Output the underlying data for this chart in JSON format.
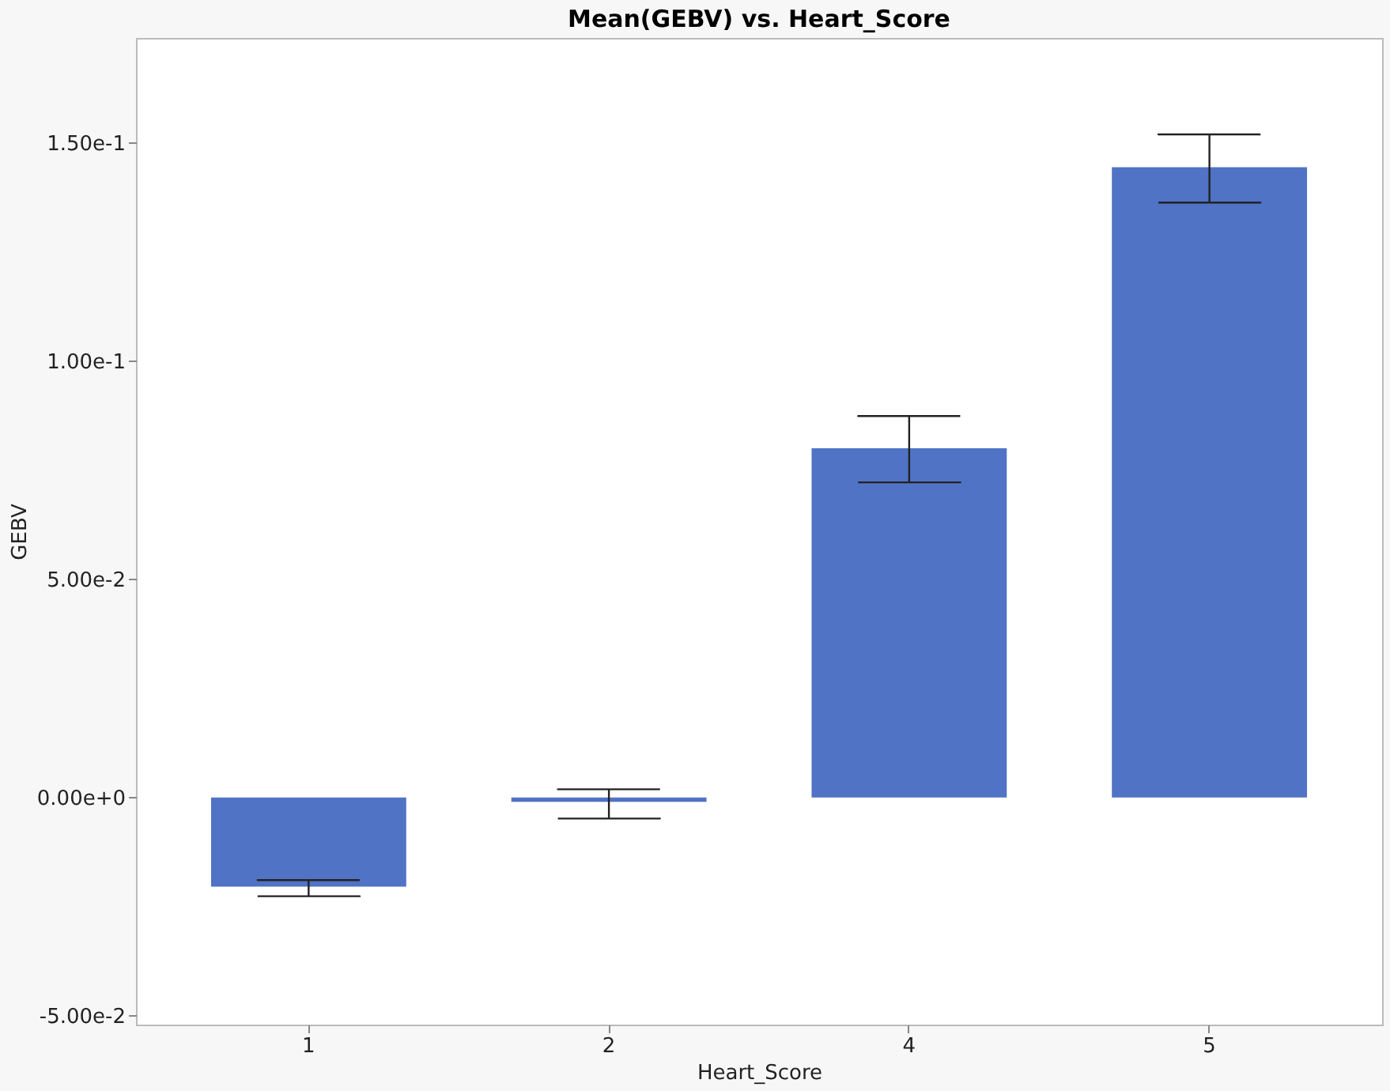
{
  "chart_data": {
    "type": "bar",
    "title": "Mean(GEBV) vs. Heart_Score",
    "xlabel": "Heart_Score",
    "ylabel": "GEBV",
    "categories": [
      "1",
      "2",
      "4",
      "5"
    ],
    "values": [
      -0.0204,
      -0.001,
      0.08,
      0.1444
    ],
    "color": "#5073c5",
    "errors": [
      [
        -0.0226,
        -0.0189
      ],
      [
        -0.0048,
        0.0019
      ],
      [
        0.0722,
        0.0874
      ],
      [
        0.1363,
        0.1519
      ]
    ],
    "ylim": [
      -0.052,
      0.174
    ],
    "yticks": [
      {
        "value": -0.05,
        "label": "-5.00e-2"
      },
      {
        "value": 0,
        "label": "0.00e+0"
      },
      {
        "value": 0.05,
        "label": "5.00e-2"
      },
      {
        "value": 0.1,
        "label": "1.00e-1"
      },
      {
        "value": 0.15,
        "label": "1.50e-1"
      }
    ],
    "grid": false
  }
}
